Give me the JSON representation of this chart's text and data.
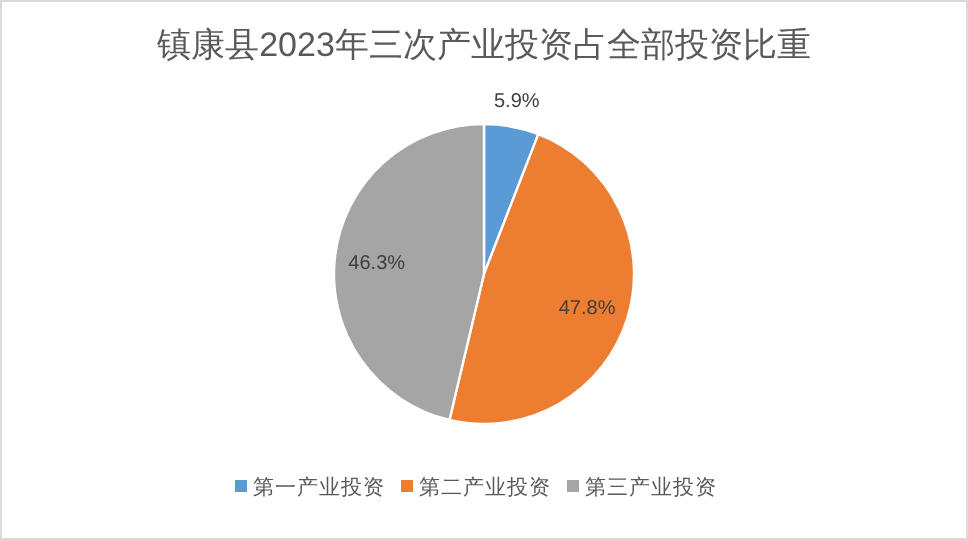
{
  "chart_data": {
    "type": "pie",
    "title": "镇康县2023年三次产业投资占全部投资比重",
    "categories": [
      "第一产业投资",
      "第二产业投资",
      "第三产业投资"
    ],
    "values": [
      5.9,
      47.8,
      46.3
    ],
    "colors": [
      "#5b9bd5",
      "#ed7d31",
      "#a5a5a5"
    ],
    "value_labels": [
      "5.9%",
      "47.8%",
      "46.3%"
    ],
    "legend": "bottom"
  }
}
